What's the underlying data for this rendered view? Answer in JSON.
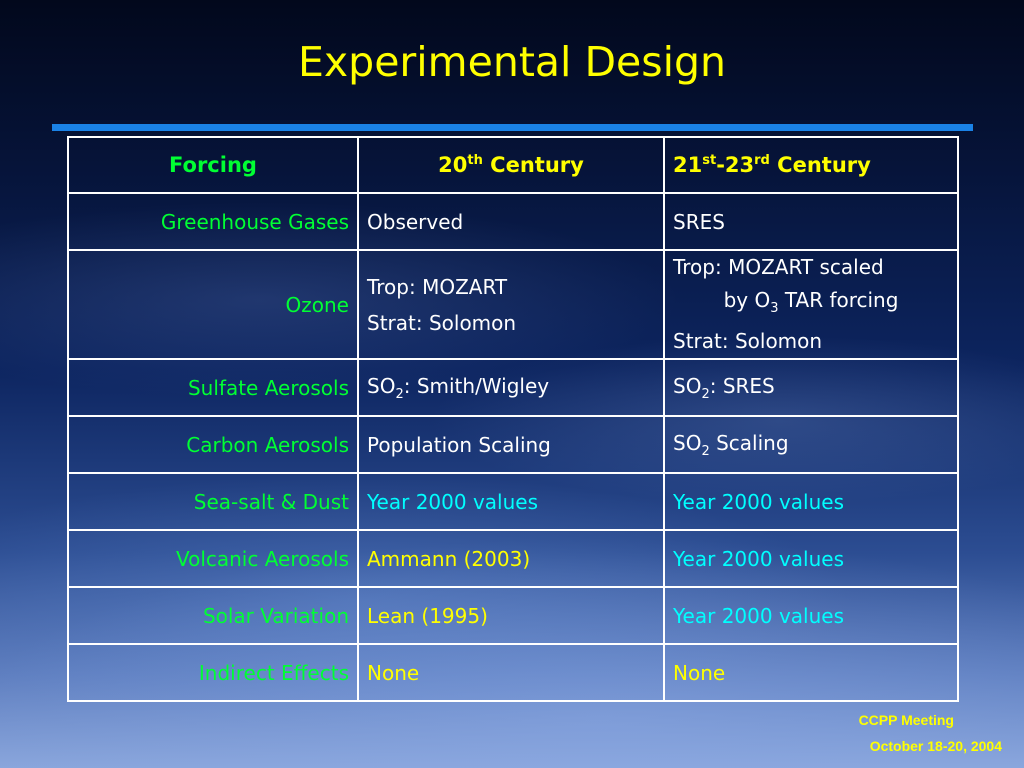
{
  "title": "Experimental Design",
  "table": {
    "headers": {
      "forcing": "Forcing",
      "c20_pre": "20",
      "c20_sup": "th",
      "c20_post": " Century",
      "c21_pre": "21",
      "c21_sup": "st",
      "c21_mid": "-23",
      "c21_sup2": "rd",
      "c21_post": " Century"
    },
    "rows": {
      "ghg": {
        "label": "Greenhouse Gases",
        "c20": "Observed",
        "c21": "SRES"
      },
      "ozone": {
        "label": "Ozone",
        "c20_l1": "Trop: MOZART",
        "c20_l2": "Strat: Solomon",
        "c21_l1": "Trop: MOZART scaled",
        "c21_l2_pre": "by O",
        "c21_l2_sub": "3",
        "c21_l2_post": " TAR forcing",
        "c21_l3": "Strat: Solomon"
      },
      "sulfate": {
        "label": "Sulfate Aerosols",
        "c20_pre": "SO",
        "c20_sub": "2",
        "c20_post": ": Smith/Wigley",
        "c21_pre": "SO",
        "c21_sub": "2",
        "c21_post": ": SRES"
      },
      "carbon": {
        "label": "Carbon Aerosols",
        "c20": "Population Scaling",
        "c21_pre": "SO",
        "c21_sub": "2",
        "c21_post": " Scaling"
      },
      "seasalt": {
        "label": "Sea-salt & Dust",
        "c20": "Year 2000 values",
        "c21": "Year 2000 values"
      },
      "volcanic": {
        "label": "Volcanic Aerosols",
        "c20": "Ammann (2003)",
        "c21": "Year 2000 values"
      },
      "solar": {
        "label": "Solar Variation",
        "c20": "Lean (1995)",
        "c21": "Year 2000 values"
      },
      "indirect": {
        "label": "Indirect Effects",
        "c20": "None",
        "c21": "None"
      }
    }
  },
  "footer": {
    "line1": "CCPP Meeting",
    "line2": "October 18-20, 2004"
  },
  "colors": {
    "title": "#ffff00",
    "rule": "#1a82e6",
    "label": "#00ff33",
    "white": "#ffffff",
    "yellow": "#ffff00",
    "cyan": "#00ffff"
  }
}
